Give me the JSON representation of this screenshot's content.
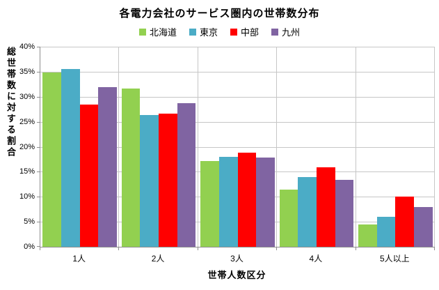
{
  "chart_data": {
    "type": "bar",
    "title": "各電力会社のサービス圏内の世帯数分布",
    "xlabel": "世帯人数区分",
    "ylabel": "総世帯数に対する割合",
    "categories": [
      "1人",
      "2人",
      "3人",
      "4人",
      "5人以上"
    ],
    "series": [
      {
        "name": "北海道",
        "color": "#92D050",
        "values": [
          34.9,
          31.7,
          17.2,
          11.5,
          4.5
        ]
      },
      {
        "name": "東京",
        "color": "#4BACC6",
        "values": [
          35.6,
          26.3,
          18.0,
          14.0,
          6.0
        ]
      },
      {
        "name": "中部",
        "color": "#FF0000",
        "values": [
          28.4,
          26.6,
          18.8,
          15.9,
          10.1
        ]
      },
      {
        "name": "九州",
        "color": "#8064A2",
        "values": [
          31.9,
          28.7,
          17.8,
          13.4,
          7.9
        ]
      }
    ],
    "ylim": [
      0,
      40
    ],
    "ytick_step": 5,
    "ytick_labels": [
      "0%",
      "5%",
      "10%",
      "15%",
      "20%",
      "25%",
      "30%",
      "35%",
      "40%"
    ],
    "grid": true,
    "legend_position": "top",
    "colors": {
      "gridline": "#C6C6C6",
      "axis_line": "#8E8E8E",
      "background": "#FFFFFF",
      "text": "#000000"
    }
  }
}
